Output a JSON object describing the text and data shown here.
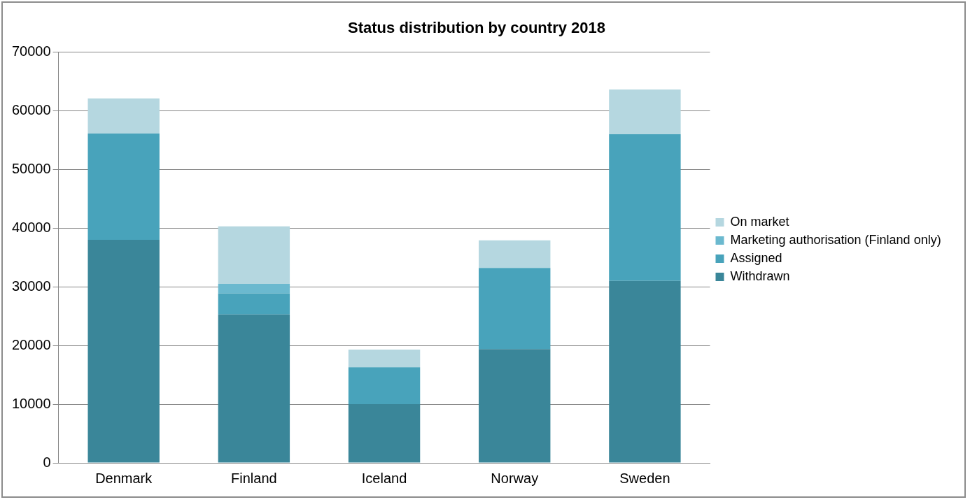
{
  "chart_data": {
    "type": "bar",
    "title": "Status distribution by country 2018",
    "categories": [
      "Denmark",
      "Finland",
      "Iceland",
      "Norway",
      "Sweden"
    ],
    "stacked": true,
    "ylim": [
      0,
      70000
    ],
    "yticks": [
      0,
      10000,
      20000,
      30000,
      40000,
      50000,
      60000,
      70000
    ],
    "grid": "y",
    "legend": "right",
    "series": [
      {
        "name": "Withdrawn",
        "color": "#3a8699",
        "values": [
          38000,
          25300,
          10000,
          19400,
          31000
        ]
      },
      {
        "name": "Assigned",
        "color": "#48a3bb",
        "values": [
          18100,
          3600,
          6300,
          13800,
          25000
        ]
      },
      {
        "name": "Marketing authorisation (Finland only)",
        "color": "#6bb9cf",
        "values": [
          null,
          1600,
          null,
          null,
          null
        ]
      },
      {
        "name": "On market",
        "color": "#b5d7e0",
        "values": [
          6000,
          9800,
          3000,
          4700,
          7600
        ]
      }
    ]
  }
}
